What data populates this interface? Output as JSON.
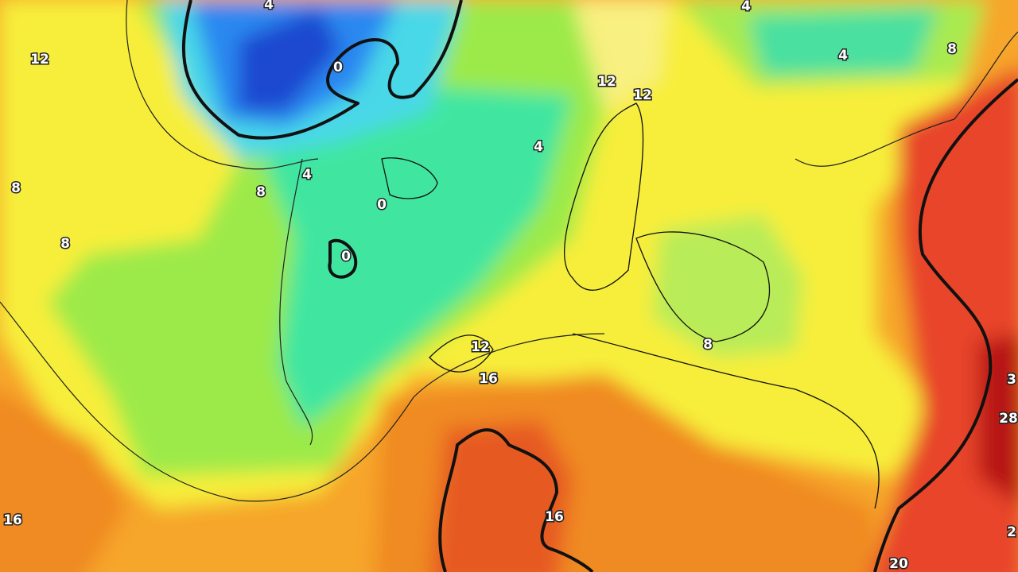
{
  "map": {
    "labels": [
      {
        "text": 4
      },
      {
        "text": 12
      },
      {
        "text": 0
      },
      {
        "text": 4
      },
      {
        "text": 4
      },
      {
        "text": 8
      },
      {
        "text": 12
      },
      {
        "text": 12
      },
      {
        "text": 4
      },
      {
        "text": 8
      },
      {
        "text": 8
      },
      {
        "text": 4
      },
      {
        "text": 0
      },
      {
        "text": 8
      },
      {
        "text": 0
      },
      {
        "text": 12
      },
      {
        "text": 8
      },
      {
        "text": 16
      },
      {
        "text": 3
      },
      {
        "text": 28
      },
      {
        "text": 16
      },
      {
        "text": 16
      },
      {
        "text": 2
      },
      {
        "text": 20
      }
    ]
  }
}
